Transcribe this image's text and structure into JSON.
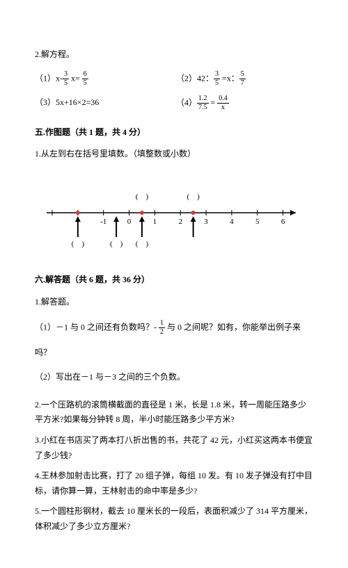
{
  "header": {
    "title": "2.解方程。"
  },
  "equations": {
    "eq1_label": "（1）x-",
    "eq1_mid": " x= ",
    "eq2_label": "（2）42：",
    "eq2_mid": " =x：",
    "eq3": "（3）5x+16×2=36",
    "eq4_label": "（4）",
    "eq4_eq": " = ",
    "f3_5_n": "3",
    "f3_5_d": "5",
    "f6_5_n": "6",
    "f6_5_d": "5",
    "f5_7_n": "5",
    "f5_7_d": "7",
    "f12_75_n": "1.2",
    "f12_75_d": "7.5",
    "f04_x_n": "0.4",
    "f04_x_d": "x"
  },
  "sec5": {
    "title": "五.作图题（共 1 题，共 4 分）",
    "q1": "1.从左到右在括号里填数。（填整数或小数）"
  },
  "numline": {
    "start": -3,
    "end": 6.5,
    "ticks": [
      -3,
      -2,
      -1,
      0,
      1,
      2,
      3,
      4,
      5,
      6
    ],
    "labels": [
      {
        "x": -1,
        "text": "-1"
      },
      {
        "x": 0,
        "text": "0"
      },
      {
        "x": 1,
        "text": "1"
      },
      {
        "x": 2,
        "text": "2"
      },
      {
        "x": 3,
        "text": "3"
      },
      {
        "x": 4,
        "text": "4"
      },
      {
        "x": 5,
        "text": "5"
      },
      {
        "x": 6,
        "text": "6"
      }
    ],
    "brackets_above": [
      {
        "x": 0.5
      },
      {
        "x": 2.5
      }
    ],
    "brackets_below": [
      {
        "x": -2
      },
      {
        "x": -0.5
      },
      {
        "x": 0.5
      }
    ],
    "red_dots": [
      -2,
      0.5,
      2.5
    ],
    "arrows_up": [
      -2,
      -0.5,
      0.5,
      2.5
    ],
    "colors": {
      "line": "#000000",
      "dot": "#d83a2b",
      "arrow": "#000000"
    }
  },
  "sec6": {
    "title": "六.解答题（共 6 题，共 36 分）",
    "q1_title": "1.解答题。",
    "q1_1a": "（1）－1 与 0 之间还有负数吗？- ",
    "q1_1b": " 与 0 之间呢？如有，你能举出例子来",
    "q1_1c": "吗？",
    "half_n": "1",
    "half_d": "2",
    "q1_2": "（2）写出在－1 与－3 之间的三个负数。",
    "q2": "2.一个压路机的滚筒横截面的直径是 1 米，长是 1.8 米，转一周能压路多少平方米?如果每分钟转 8 周，半小时能压路多少平方米?",
    "q3": "3.小红在书店买了两本打八折出售的书，共花了 42 元，小红买这两本书便宜了多少钱?",
    "q4": "4.王林参加射击比赛，打了 20 组子弹，每组 10 发。有 10 发子弹没有打中目标，请你算一算，王林射击的命中率是多少?",
    "q5": "5.一个圆柱形钢材，截去 10 厘米长的一段后，表面积减少了 314 平方厘米，体积减少了多少立方厘米?"
  }
}
